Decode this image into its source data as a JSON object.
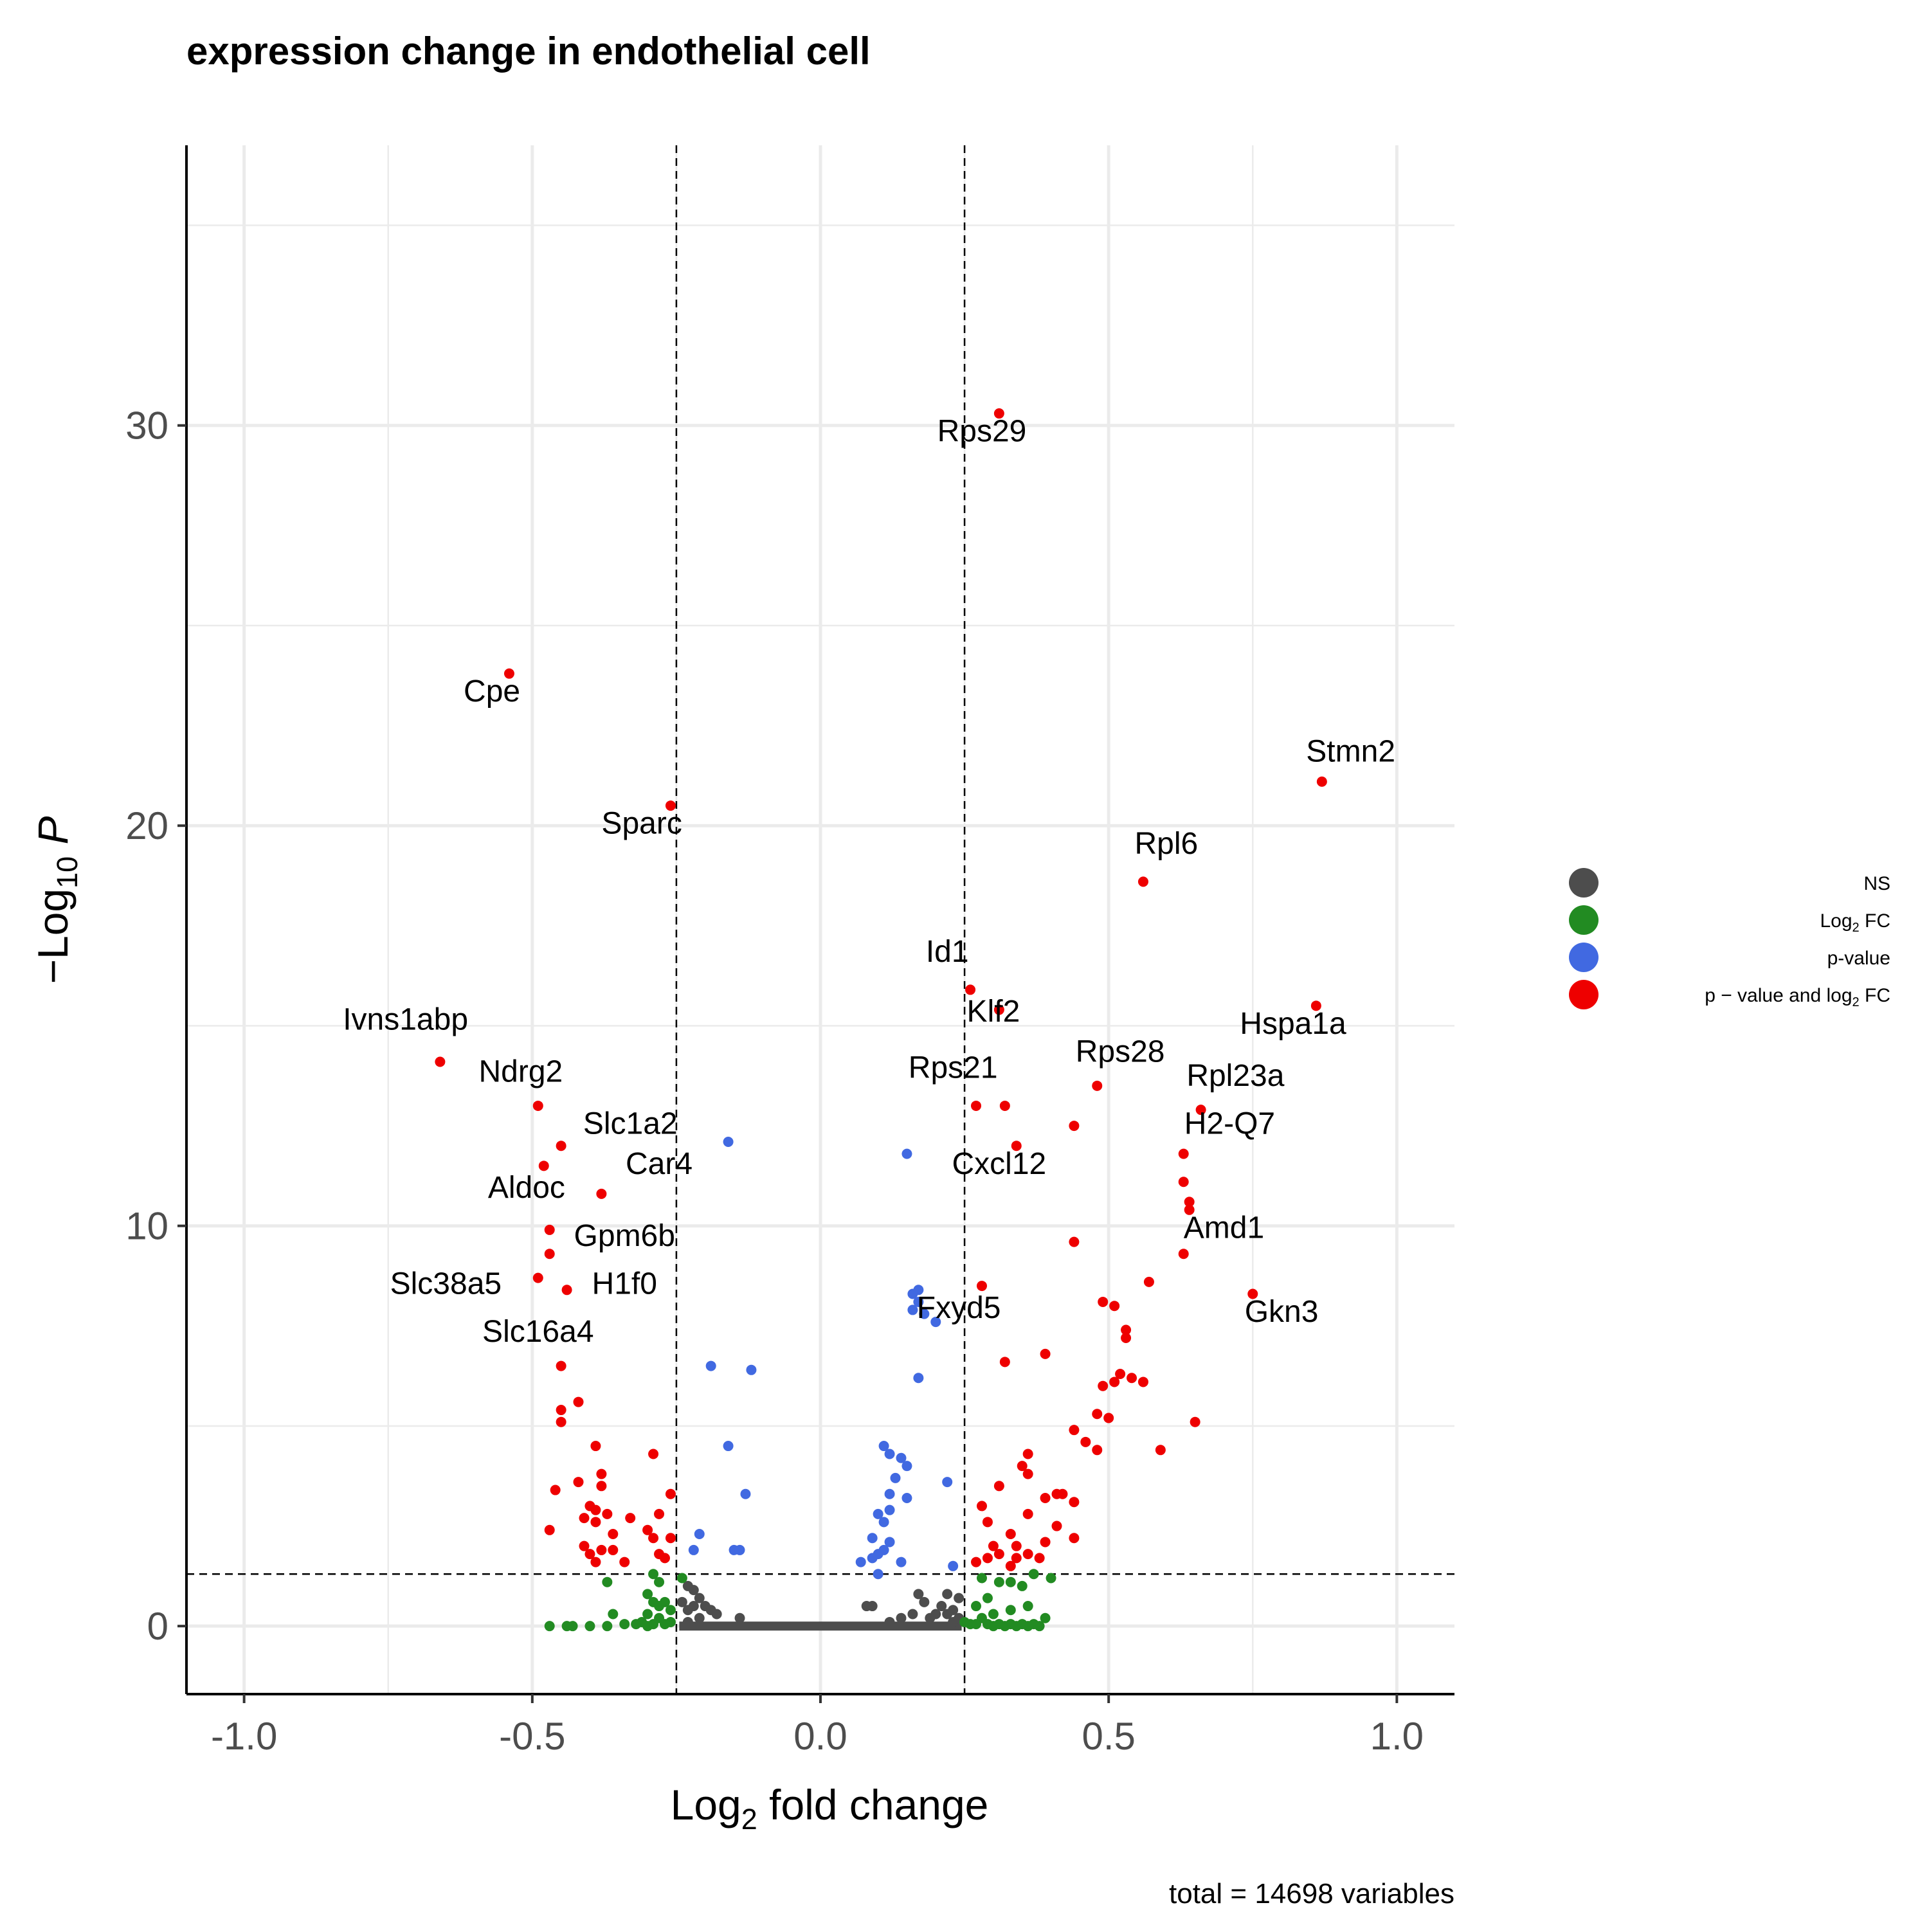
{
  "chart_data": {
    "type": "scatter",
    "title": "expression change in  endothelial cell",
    "xlabel": "Log2 fold change",
    "ylabel": "−Log10 P",
    "caption": "total = 14698 variables",
    "xlim": [
      -1.1,
      1.1
    ],
    "ylim": [
      -1.7,
      37
    ],
    "xticks": [
      -1.0,
      -0.5,
      0.0,
      0.5,
      1.0
    ],
    "xtick_labels": [
      "-1.0",
      "-0.5",
      "0.0",
      "0.5",
      "1.0"
    ],
    "yticks": [
      0,
      10,
      20,
      30
    ],
    "ytick_labels": [
      "0",
      "10",
      "20",
      "30"
    ],
    "grid": true,
    "thresholds": {
      "log2fc": [
        -0.25,
        0.25
      ],
      "neg_log10_p": 1.3
    },
    "legend": {
      "position": "right",
      "entries": [
        {
          "key": "ns",
          "label": "NS",
          "color": "#4d4d4d"
        },
        {
          "key": "fc",
          "label": "Log2 FC",
          "color": "#228b22"
        },
        {
          "key": "p",
          "label": "p-value",
          "color": "#4169e1"
        },
        {
          "key": "both",
          "label": "p − value and log2 FC",
          "color": "#ee0000"
        }
      ]
    },
    "series": [
      {
        "key": "both",
        "points": [
          [
            0.31,
            30.3
          ],
          [
            -0.54,
            23.8
          ],
          [
            0.87,
            21.1
          ],
          [
            -0.26,
            20.5
          ],
          [
            0.56,
            18.6
          ],
          [
            0.26,
            15.9
          ],
          [
            0.86,
            15.5
          ],
          [
            0.31,
            15.4
          ],
          [
            -0.66,
            14.1
          ],
          [
            0.48,
            13.5
          ],
          [
            -0.49,
            13.0
          ],
          [
            0.66,
            12.9
          ],
          [
            0.27,
            13.0
          ],
          [
            0.32,
            13.0
          ],
          [
            0.44,
            12.5
          ],
          [
            0.34,
            12.0
          ],
          [
            -0.45,
            12.0
          ],
          [
            0.63,
            11.8
          ],
          [
            -0.48,
            11.5
          ],
          [
            0.63,
            11.1
          ],
          [
            -0.38,
            10.8
          ],
          [
            0.64,
            10.6
          ],
          [
            0.64,
            10.4
          ],
          [
            -0.47,
            9.9
          ],
          [
            0.44,
            9.6
          ],
          [
            0.63,
            9.3
          ],
          [
            -0.47,
            9.3
          ],
          [
            -0.49,
            8.7
          ],
          [
            0.57,
            8.6
          ],
          [
            0.28,
            8.5
          ],
          [
            -0.44,
            8.4
          ],
          [
            0.75,
            8.3
          ],
          [
            0.49,
            8.1
          ],
          [
            0.51,
            8.0
          ],
          [
            0.53,
            7.4
          ],
          [
            0.53,
            7.2
          ],
          [
            0.39,
            6.8
          ],
          [
            0.32,
            6.6
          ],
          [
            -0.45,
            6.5
          ],
          [
            0.52,
            6.3
          ],
          [
            0.54,
            6.2
          ],
          [
            0.51,
            6.1
          ],
          [
            0.56,
            6.1
          ],
          [
            0.49,
            6.0
          ],
          [
            -0.42,
            5.6
          ],
          [
            -0.45,
            5.4
          ],
          [
            0.48,
            5.3
          ],
          [
            0.5,
            5.2
          ],
          [
            -0.45,
            5.1
          ],
          [
            0.65,
            5.1
          ],
          [
            0.44,
            4.9
          ],
          [
            0.46,
            4.6
          ],
          [
            -0.39,
            4.5
          ],
          [
            0.59,
            4.4
          ],
          [
            -0.29,
            4.3
          ],
          [
            0.36,
            4.3
          ],
          [
            0.48,
            4.4
          ],
          [
            0.35,
            4.0
          ],
          [
            0.36,
            3.8
          ],
          [
            -0.38,
            3.8
          ],
          [
            -0.42,
            3.6
          ],
          [
            -0.38,
            3.5
          ],
          [
            0.31,
            3.5
          ],
          [
            0.41,
            3.3
          ],
          [
            0.42,
            3.3
          ],
          [
            -0.46,
            3.4
          ],
          [
            0.39,
            3.2
          ],
          [
            0.44,
            3.1
          ],
          [
            -0.26,
            3.3
          ],
          [
            -0.4,
            3.0
          ],
          [
            -0.39,
            2.9
          ],
          [
            0.28,
            3.0
          ],
          [
            -0.37,
            2.8
          ],
          [
            0.36,
            2.8
          ],
          [
            -0.28,
            2.8
          ],
          [
            -0.33,
            2.7
          ],
          [
            -0.41,
            2.7
          ],
          [
            0.29,
            2.6
          ],
          [
            -0.39,
            2.6
          ],
          [
            0.41,
            2.5
          ],
          [
            -0.3,
            2.4
          ],
          [
            -0.47,
            2.4
          ],
          [
            0.33,
            2.3
          ],
          [
            -0.36,
            2.3
          ],
          [
            -0.29,
            2.2
          ],
          [
            -0.26,
            2.2
          ],
          [
            0.3,
            2.0
          ],
          [
            0.39,
            2.1
          ],
          [
            0.34,
            2.0
          ],
          [
            0.44,
            2.2
          ],
          [
            -0.41,
            2.0
          ],
          [
            -0.38,
            1.9
          ],
          [
            -0.36,
            1.9
          ],
          [
            -0.28,
            1.8
          ],
          [
            0.31,
            1.8
          ],
          [
            0.36,
            1.8
          ],
          [
            0.34,
            1.7
          ],
          [
            -0.4,
            1.8
          ],
          [
            -0.27,
            1.7
          ],
          [
            0.27,
            1.6
          ],
          [
            0.29,
            1.7
          ],
          [
            0.33,
            1.5
          ],
          [
            -0.34,
            1.6
          ],
          [
            -0.39,
            1.6
          ],
          [
            0.38,
            1.7
          ]
        ]
      },
      {
        "key": "p",
        "points": [
          [
            -0.16,
            12.1
          ],
          [
            0.15,
            11.8
          ],
          [
            0.17,
            8.4
          ],
          [
            0.16,
            8.3
          ],
          [
            0.17,
            8.1
          ],
          [
            0.16,
            7.9
          ],
          [
            0.18,
            7.8
          ],
          [
            0.2,
            7.6
          ],
          [
            -0.19,
            6.5
          ],
          [
            -0.12,
            6.4
          ],
          [
            0.17,
            6.2
          ],
          [
            0.11,
            4.5
          ],
          [
            0.12,
            4.3
          ],
          [
            -0.16,
            4.5
          ],
          [
            0.14,
            4.2
          ],
          [
            0.15,
            4.0
          ],
          [
            0.13,
            3.7
          ],
          [
            0.22,
            3.6
          ],
          [
            0.12,
            3.3
          ],
          [
            -0.13,
            3.3
          ],
          [
            0.15,
            3.2
          ],
          [
            0.12,
            2.9
          ],
          [
            0.1,
            2.8
          ],
          [
            0.11,
            2.6
          ],
          [
            -0.21,
            2.3
          ],
          [
            0.09,
            2.2
          ],
          [
            0.12,
            2.1
          ],
          [
            0.11,
            1.9
          ],
          [
            -0.15,
            1.9
          ],
          [
            -0.14,
            1.9
          ],
          [
            0.1,
            1.8
          ],
          [
            -0.22,
            1.9
          ],
          [
            0.09,
            1.7
          ],
          [
            0.07,
            1.6
          ],
          [
            0.23,
            1.5
          ],
          [
            0.14,
            1.6
          ],
          [
            0.1,
            1.3
          ]
        ]
      },
      {
        "key": "fc",
        "points": [
          [
            0.4,
            1.2
          ],
          [
            0.37,
            1.3
          ],
          [
            -0.29,
            1.3
          ],
          [
            0.33,
            1.1
          ],
          [
            -0.37,
            1.1
          ],
          [
            -0.28,
            1.1
          ],
          [
            -0.24,
            1.2
          ],
          [
            0.28,
            1.2
          ],
          [
            0.35,
            1.0
          ],
          [
            0.31,
            1.1
          ],
          [
            -0.3,
            0.8
          ],
          [
            -0.29,
            0.6
          ],
          [
            -0.27,
            0.6
          ],
          [
            0.29,
            0.7
          ],
          [
            0.36,
            0.5
          ],
          [
            0.27,
            0.5
          ],
          [
            -0.28,
            0.5
          ],
          [
            -0.26,
            0.4
          ],
          [
            0.33,
            0.4
          ],
          [
            -0.36,
            0.3
          ],
          [
            0.3,
            0.3
          ],
          [
            -0.3,
            0.3
          ],
          [
            -0.28,
            0.2
          ],
          [
            0.39,
            0.2
          ],
          [
            0.28,
            0.2
          ],
          [
            -0.31,
            0.1
          ],
          [
            -0.26,
            0.1
          ],
          [
            0.25,
            0.1
          ],
          [
            0.26,
            0.05
          ],
          [
            0.29,
            0.05
          ],
          [
            0.31,
            0.05
          ],
          [
            0.33,
            0.05
          ],
          [
            0.35,
            0.05
          ],
          [
            0.37,
            0.05
          ],
          [
            0.27,
            0.05
          ],
          [
            -0.27,
            0.05
          ],
          [
            -0.29,
            0.05
          ],
          [
            -0.32,
            0.05
          ],
          [
            -0.34,
            0.05
          ],
          [
            -0.4,
            0.0
          ],
          [
            -0.43,
            0.0
          ],
          [
            -0.47,
            0.0
          ],
          [
            -0.44,
            0.0
          ],
          [
            -0.37,
            0.0
          ],
          [
            -0.3,
            0.0
          ],
          [
            0.3,
            0.0
          ],
          [
            0.34,
            0.0
          ],
          [
            0.36,
            0.0
          ],
          [
            0.38,
            0.0
          ],
          [
            0.32,
            0.0
          ]
        ]
      },
      {
        "key": "ns",
        "points": [
          [
            -0.23,
            1.0
          ],
          [
            -0.22,
            0.9
          ],
          [
            -0.21,
            0.7
          ],
          [
            -0.24,
            0.6
          ],
          [
            -0.22,
            0.5
          ],
          [
            -0.2,
            0.5
          ],
          [
            -0.23,
            0.4
          ],
          [
            -0.19,
            0.4
          ],
          [
            -0.18,
            0.3
          ],
          [
            -0.14,
            0.2
          ],
          [
            0.08,
            0.5
          ],
          [
            0.09,
            0.5
          ],
          [
            0.17,
            0.8
          ],
          [
            0.22,
            0.8
          ],
          [
            0.24,
            0.7
          ],
          [
            0.18,
            0.6
          ],
          [
            0.21,
            0.5
          ],
          [
            0.23,
            0.4
          ],
          [
            0.2,
            0.3
          ],
          [
            0.19,
            0.2
          ],
          [
            0.16,
            0.3
          ],
          [
            0.14,
            0.2
          ],
          [
            0.24,
            0.2
          ],
          [
            0.12,
            0.1
          ],
          [
            -0.23,
            0.1
          ],
          [
            -0.21,
            0.2
          ],
          [
            0.23,
            0.1
          ],
          [
            0.22,
            0.3
          ]
        ]
      }
    ],
    "labels": [
      {
        "text": "Rps29",
        "x": 0.31,
        "y": 30.3,
        "lx": 0.28,
        "ly": 29.6
      },
      {
        "text": "Cpe",
        "x": -0.54,
        "y": 23.8,
        "lx": -0.57,
        "ly": 23.1
      },
      {
        "text": "Stmn2",
        "x": 0.87,
        "y": 21.1,
        "lx": 0.92,
        "ly": 21.6
      },
      {
        "text": "Sparc",
        "x": -0.26,
        "y": 20.5,
        "lx": -0.31,
        "ly": 19.8
      },
      {
        "text": "Rpl6",
        "x": 0.56,
        "y": 18.6,
        "lx": 0.6,
        "ly": 19.3
      },
      {
        "text": "Id1",
        "x": 0.26,
        "y": 15.9,
        "lx": 0.22,
        "ly": 16.6
      },
      {
        "text": "Klf2",
        "x": 0.31,
        "y": 15.4,
        "lx": 0.3,
        "ly": 15.1
      },
      {
        "text": "Hspa1a",
        "x": 0.86,
        "y": 15.5,
        "lx": 0.82,
        "ly": 14.8
      },
      {
        "text": "Ivns1abp",
        "x": -0.66,
        "y": 14.1,
        "lx": -0.72,
        "ly": 14.9
      },
      {
        "text": "Rps28",
        "x": 0.48,
        "y": 13.5,
        "lx": 0.52,
        "ly": 14.1
      },
      {
        "text": "Rps21",
        "x": 0.27,
        "y": 13.0,
        "lx": 0.23,
        "ly": 13.7
      },
      {
        "text": "Ndrg2",
        "x": -0.49,
        "y": 13.0,
        "lx": -0.52,
        "ly": 13.6
      },
      {
        "text": "Rpl23a",
        "x": 0.66,
        "y": 12.9,
        "lx": 0.72,
        "ly": 13.5
      },
      {
        "text": "Slc1a2",
        "x": -0.45,
        "y": 12.0,
        "lx": -0.33,
        "ly": 12.3
      },
      {
        "text": "H2-Q7",
        "x": 0.63,
        "y": 11.8,
        "lx": 0.71,
        "ly": 12.3
      },
      {
        "text": "Cxcl12",
        "x": 0.34,
        "y": 12.0,
        "lx": 0.31,
        "ly": 11.3
      },
      {
        "text": "Car4",
        "x": -0.38,
        "y": 10.8,
        "lx": -0.28,
        "ly": 11.3
      },
      {
        "text": "Aldoc",
        "x": -0.48,
        "y": 11.5,
        "lx": -0.51,
        "ly": 10.7
      },
      {
        "text": "Gpm6b",
        "x": -0.47,
        "y": 9.9,
        "lx": -0.34,
        "ly": 9.5
      },
      {
        "text": "Amd1",
        "x": 0.63,
        "y": 9.3,
        "lx": 0.7,
        "ly": 9.7
      },
      {
        "text": "Slc38a5",
        "x": -0.49,
        "y": 8.7,
        "lx": -0.65,
        "ly": 8.3
      },
      {
        "text": "H1f0",
        "x": -0.44,
        "y": 8.4,
        "lx": -0.34,
        "ly": 8.3
      },
      {
        "text": "Fxyd5",
        "x": 0.28,
        "y": 8.5,
        "lx": 0.24,
        "ly": 7.7
      },
      {
        "text": "Gkn3",
        "x": 0.75,
        "y": 8.3,
        "lx": 0.8,
        "ly": 7.6
      },
      {
        "text": "Slc16a4",
        "x": -0.45,
        "y": 6.5,
        "lx": -0.49,
        "ly": 7.1
      }
    ]
  }
}
